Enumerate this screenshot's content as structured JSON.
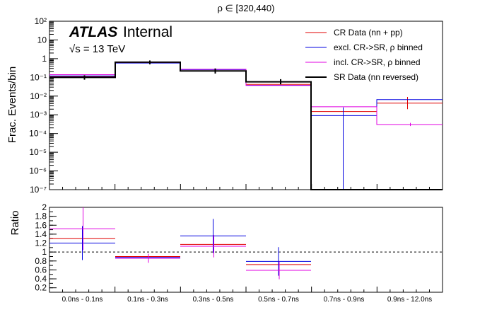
{
  "title": "ρ ∈ [320,440)",
  "experiment": {
    "name": "ATLAS",
    "status": "Internal",
    "energy": "√s = 13 TeV"
  },
  "chart_data": [
    {
      "type": "step-histogram",
      "name": "main",
      "ylabel": "Frac. Events/bin",
      "yscale": "log",
      "ylim": [
        1e-07,
        100
      ],
      "yticks": [
        {
          "v": 1e-07,
          "label": "10⁻⁷"
        },
        {
          "v": 1e-06,
          "label": "10⁻⁶"
        },
        {
          "v": 1e-05,
          "label": "10⁻⁵"
        },
        {
          "v": 0.0001,
          "label": "10⁻⁴"
        },
        {
          "v": 0.001,
          "label": "10⁻³"
        },
        {
          "v": 0.01,
          "label": "10⁻²"
        },
        {
          "v": 0.1,
          "label": "10⁻¹"
        },
        {
          "v": 1,
          "label": "1"
        },
        {
          "v": 10,
          "label": "10"
        },
        {
          "v": 100,
          "label": "10²"
        }
      ],
      "categories": [
        "0.0ns - 0.1ns",
        "0.1ns - 0.3ns",
        "0.3ns - 0.5ns",
        "0.5ns - 0.7ns",
        "0.7ns - 0.9ns",
        "0.9ns - 12.0ns"
      ],
      "series": [
        {
          "name": "CR Data (nn + pp)",
          "color": "#e00000",
          "values": [
            0.11,
            0.62,
            0.22,
            0.042,
            0.0015,
            0.0042
          ],
          "errors_lo": [
            null,
            null,
            null,
            null,
            null,
            0.002
          ],
          "errors_hi": [
            null,
            null,
            null,
            null,
            null,
            0.009
          ]
        },
        {
          "name": "excl. CR->SR, ρ binned",
          "color": "#0000e0",
          "values": [
            0.12,
            0.58,
            0.26,
            0.038,
            0.0009,
            0.0065
          ],
          "errors_lo": [
            null,
            null,
            null,
            null,
            1e-07,
            null
          ],
          "errors_hi": [
            null,
            null,
            null,
            null,
            0.0025,
            null
          ]
        },
        {
          "name": "incl. CR->SR, ρ binned",
          "color": "#e000e0",
          "values": [
            0.14,
            0.62,
            0.27,
            0.037,
            0.0027,
            0.0003
          ],
          "errors_lo": [
            null,
            null,
            null,
            null,
            null,
            0.00025
          ],
          "errors_hi": [
            null,
            null,
            null,
            null,
            null,
            0.00037
          ]
        },
        {
          "name": "SR Data (nn reversed)",
          "color": "#000000",
          "values": [
            0.1,
            0.65,
            0.22,
            0.058,
            1e-07,
            1e-07
          ],
          "errors_lo": [
            0.075,
            0.5,
            0.16,
            0.042,
            null,
            null
          ],
          "errors_hi": [
            0.13,
            0.8,
            0.3,
            0.08,
            null,
            null
          ]
        }
      ]
    },
    {
      "type": "ratio",
      "name": "ratio",
      "ylabel": "Ratio",
      "ylim": [
        0.1,
        2.0
      ],
      "yticks": [
        0.2,
        0.4,
        0.6,
        0.8,
        1,
        1.2,
        1.4,
        1.6,
        1.8,
        2
      ],
      "reference_line": 1,
      "categories": [
        "0.0ns - 0.1ns",
        "0.1ns - 0.3ns",
        "0.3ns - 0.5ns",
        "0.5ns - 0.7ns",
        "0.7ns - 0.9ns",
        "0.9ns - 12.0ns"
      ],
      "series": [
        {
          "name": "CR Data (nn + pp)",
          "color": "#e00000",
          "values": [
            1.3,
            0.9,
            1.17,
            0.72,
            null,
            null
          ],
          "errors": [
            null,
            null,
            null,
            null,
            null,
            null
          ]
        },
        {
          "name": "excl. CR->SR, ρ binned",
          "color": "#0000e0",
          "values": [
            1.2,
            0.88,
            1.36,
            0.79,
            null,
            null
          ],
          "errors": [
            0.38,
            null,
            0.38,
            0.32,
            null,
            null
          ]
        },
        {
          "name": "incl. CR->SR, ρ binned",
          "color": "#e000e0",
          "values": [
            1.52,
            0.86,
            1.13,
            0.59,
            null,
            null
          ],
          "errors": [
            0.48,
            0.1,
            0.25,
            0.2,
            null,
            null
          ]
        }
      ]
    }
  ]
}
